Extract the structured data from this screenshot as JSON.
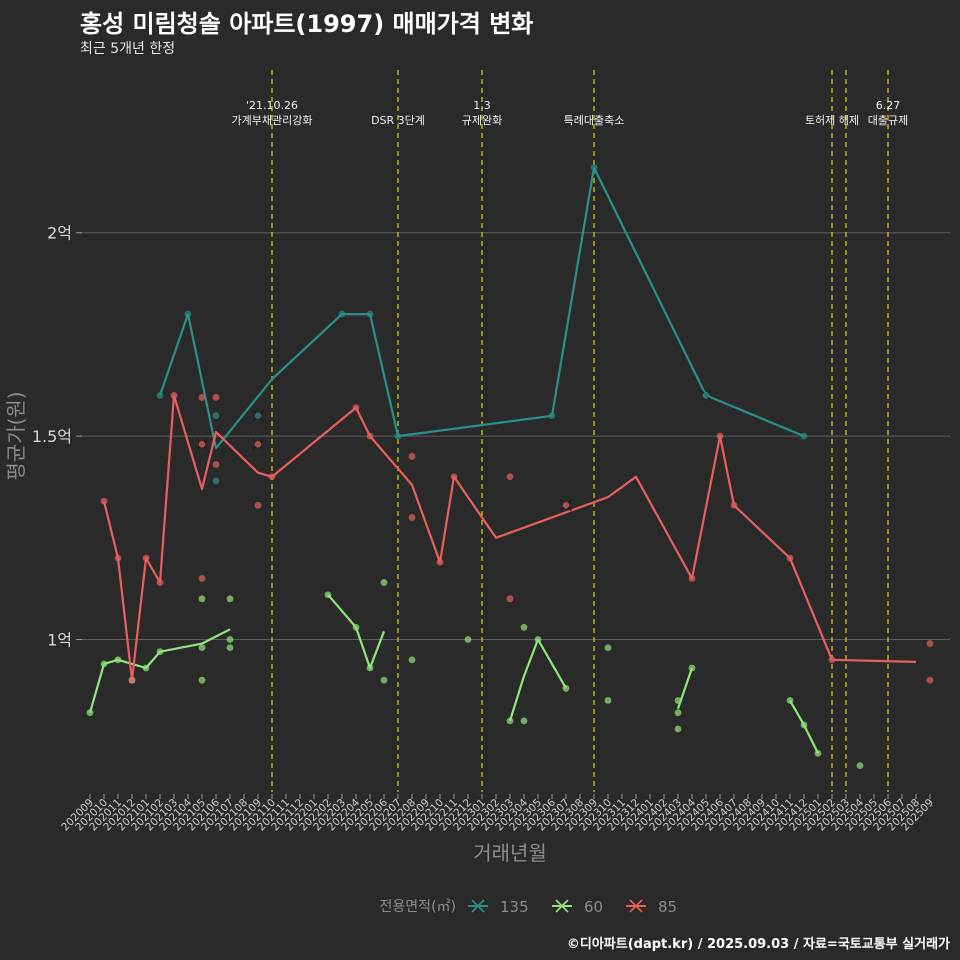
{
  "title": "홍성 미림청솔 아파트(1997) 매매가격 변화",
  "subtitle": "최근 5개년 한정",
  "caption": "©디아파트(dapt.kr) / 2025.09.03 / 자료=국토교통부 실거래가",
  "chart_data": {
    "type": "line",
    "xlabel": "거래년월",
    "ylabel": "평균가(원)",
    "ylim": [
      0.63,
      2.4
    ],
    "y_unit": "억",
    "y_ticks": [
      {
        "value": 1.0,
        "label": "1억"
      },
      {
        "value": 1.5,
        "label": "1.5억"
      },
      {
        "value": 2.0,
        "label": "2억"
      }
    ],
    "categories": [
      "202009",
      "202010",
      "202011",
      "202012",
      "202101",
      "202102",
      "202103",
      "202104",
      "202105",
      "202106",
      "202107",
      "202108",
      "202109",
      "202110",
      "202111",
      "202112",
      "202201",
      "202202",
      "202203",
      "202204",
      "202205",
      "202206",
      "202207",
      "202208",
      "202209",
      "202210",
      "202211",
      "202212",
      "202301",
      "202302",
      "202303",
      "202304",
      "202305",
      "202306",
      "202307",
      "202308",
      "202309",
      "202310",
      "202311",
      "202312",
      "202401",
      "202402",
      "202403",
      "202404",
      "202405",
      "202406",
      "202407",
      "202408",
      "202409",
      "202410",
      "202411",
      "202412",
      "202501",
      "202502",
      "202503",
      "202504",
      "202505",
      "202506",
      "202507",
      "202508",
      "202509"
    ],
    "legend_title": "전용면적(㎡)",
    "legend_position": "bottom",
    "grid": true,
    "series": [
      {
        "name": "135",
        "color": "#2a8f8a",
        "line": [
          [
            "202102",
            1.6
          ],
          [
            "202104",
            1.8
          ],
          [
            "202106",
            1.47
          ],
          [
            "202110",
            1.64
          ],
          [
            "202203",
            1.8
          ],
          [
            "202205",
            1.8
          ],
          [
            "202207",
            1.5
          ],
          [
            "202306",
            1.55
          ],
          [
            "202309",
            2.16
          ],
          [
            "202405",
            1.6
          ],
          [
            "202412",
            1.5
          ]
        ],
        "points": [
          [
            "202102",
            1.6
          ],
          [
            "202104",
            1.8
          ],
          [
            "202106",
            1.55
          ],
          [
            "202106",
            1.39
          ],
          [
            "202203",
            1.8
          ],
          [
            "202205",
            1.8
          ],
          [
            "202207",
            1.5
          ],
          [
            "202306",
            1.55
          ],
          [
            "202309",
            2.16
          ],
          [
            "202405",
            1.6
          ],
          [
            "202412",
            1.5
          ]
        ],
        "cross": [
          [
            "202109",
            1.55
          ],
          [
            "202405",
            1.6
          ]
        ]
      },
      {
        "name": "60",
        "color": "#8fe67a",
        "segments": [
          [
            [
              "202009",
              0.82
            ],
            [
              "202010",
              0.94
            ],
            [
              "202011",
              0.95
            ],
            [
              "202012",
              0.94
            ],
            [
              "202101",
              0.93
            ],
            [
              "202102",
              0.97
            ],
            [
              "202105",
              0.99
            ],
            [
              "202107",
              1.025
            ]
          ],
          [
            [
              "202202",
              1.11
            ],
            [
              "202204",
              1.03
            ],
            [
              "202205",
              0.93
            ],
            [
              "202206",
              1.02
            ]
          ],
          [
            [
              "202303",
              0.8
            ],
            [
              "202304",
              0.91
            ],
            [
              "202305",
              1.0
            ],
            [
              "202307",
              0.88
            ]
          ],
          [
            [
              "202403",
              0.83
            ],
            [
              "202404",
              0.93
            ]
          ],
          [
            [
              "202411",
              0.85
            ],
            [
              "202412",
              0.79
            ],
            [
              "202501",
              0.72
            ]
          ]
        ],
        "points": [
          [
            "202009",
            0.82
          ],
          [
            "202010",
            0.94
          ],
          [
            "202011",
            0.95
          ],
          [
            "202012",
            0.9
          ],
          [
            "202101",
            0.93
          ],
          [
            "202102",
            0.97
          ],
          [
            "202105",
            1.1
          ],
          [
            "202105",
            0.98
          ],
          [
            "202105",
            0.9
          ],
          [
            "202107",
            1.1
          ],
          [
            "202107",
            1.0
          ],
          [
            "202107",
            0.98
          ],
          [
            "202202",
            1.11
          ],
          [
            "202204",
            1.03
          ],
          [
            "202205",
            0.93
          ],
          [
            "202206",
            1.14
          ],
          [
            "202206",
            0.9
          ],
          [
            "202208",
            0.95
          ],
          [
            "202212",
            1.0
          ],
          [
            "202303",
            0.8
          ],
          [
            "202304",
            1.03
          ],
          [
            "202304",
            0.8
          ],
          [
            "202305",
            1.0
          ],
          [
            "202307",
            0.88
          ],
          [
            "202310",
            0.98
          ],
          [
            "202310",
            0.85
          ],
          [
            "202403",
            0.85
          ],
          [
            "202403",
            0.82
          ],
          [
            "202403",
            0.78
          ],
          [
            "202404",
            0.93
          ],
          [
            "202411",
            0.85
          ],
          [
            "202412",
            0.79
          ],
          [
            "202501",
            0.72
          ],
          [
            "202504",
            0.69
          ]
        ]
      },
      {
        "name": "85",
        "color": "#e8605c",
        "line": [
          [
            "202010",
            1.34
          ],
          [
            "202011",
            1.2
          ],
          [
            "202012",
            0.9
          ],
          [
            "202101",
            1.2
          ],
          [
            "202102",
            1.14
          ],
          [
            "202103",
            1.6
          ],
          [
            "202105",
            1.37
          ],
          [
            "202106",
            1.51
          ],
          [
            "202109",
            1.41
          ],
          [
            "202110",
            1.4
          ],
          [
            "202204",
            1.57
          ],
          [
            "202205",
            1.5
          ],
          [
            "202208",
            1.38
          ],
          [
            "202210",
            1.19
          ],
          [
            "202211",
            1.4
          ],
          [
            "202302",
            1.25
          ],
          [
            "202310",
            1.35
          ],
          [
            "202312",
            1.4
          ],
          [
            "202404",
            1.15
          ],
          [
            "202406",
            1.5
          ],
          [
            "202407",
            1.33
          ],
          [
            "202411",
            1.2
          ],
          [
            "202502",
            0.95
          ],
          [
            "202508",
            0.945
          ]
        ],
        "points": [
          [
            "202010",
            1.34
          ],
          [
            "202011",
            1.2
          ],
          [
            "202012",
            0.9
          ],
          [
            "202101",
            1.2
          ],
          [
            "202102",
            1.14
          ],
          [
            "202103",
            1.6
          ],
          [
            "202105",
            1.595
          ],
          [
            "202105",
            1.15
          ],
          [
            "202106",
            1.595
          ],
          [
            "202106",
            1.43
          ],
          [
            "202109",
            1.33
          ],
          [
            "202110",
            1.4
          ],
          [
            "202204",
            1.57
          ],
          [
            "202205",
            1.5
          ],
          [
            "202208",
            1.45
          ],
          [
            "202208",
            1.3
          ],
          [
            "202210",
            1.19
          ],
          [
            "202211",
            1.4
          ],
          [
            "202303",
            1.4
          ],
          [
            "202303",
            1.1
          ],
          [
            "202404",
            1.15
          ],
          [
            "202406",
            1.5
          ],
          [
            "202407",
            1.33
          ],
          [
            "202411",
            1.2
          ],
          [
            "202502",
            0.95
          ],
          [
            "202509",
            0.99
          ],
          [
            "202509",
            0.9
          ]
        ],
        "cross": [
          [
            "202105",
            1.48
          ],
          [
            "202109",
            1.48
          ],
          [
            "202307",
            1.33
          ]
        ]
      }
    ],
    "events": [
      {
        "x": "202110",
        "lines": [
          "'21.10.26",
          "가계부채관리강화"
        ]
      },
      {
        "x": "202207",
        "lines": [
          "DSR 3단계"
        ]
      },
      {
        "x": "202301",
        "lines": [
          "1.3",
          "규제완화"
        ]
      },
      {
        "x": "202309",
        "lines": [
          "특례대출축소"
        ]
      },
      {
        "x": "202502",
        "lines": [
          "토허제 해제"
        ]
      },
      {
        "x": "202503",
        "lines": []
      },
      {
        "x": "202506",
        "lines": [
          "6.27",
          "대출규제"
        ]
      }
    ]
  }
}
